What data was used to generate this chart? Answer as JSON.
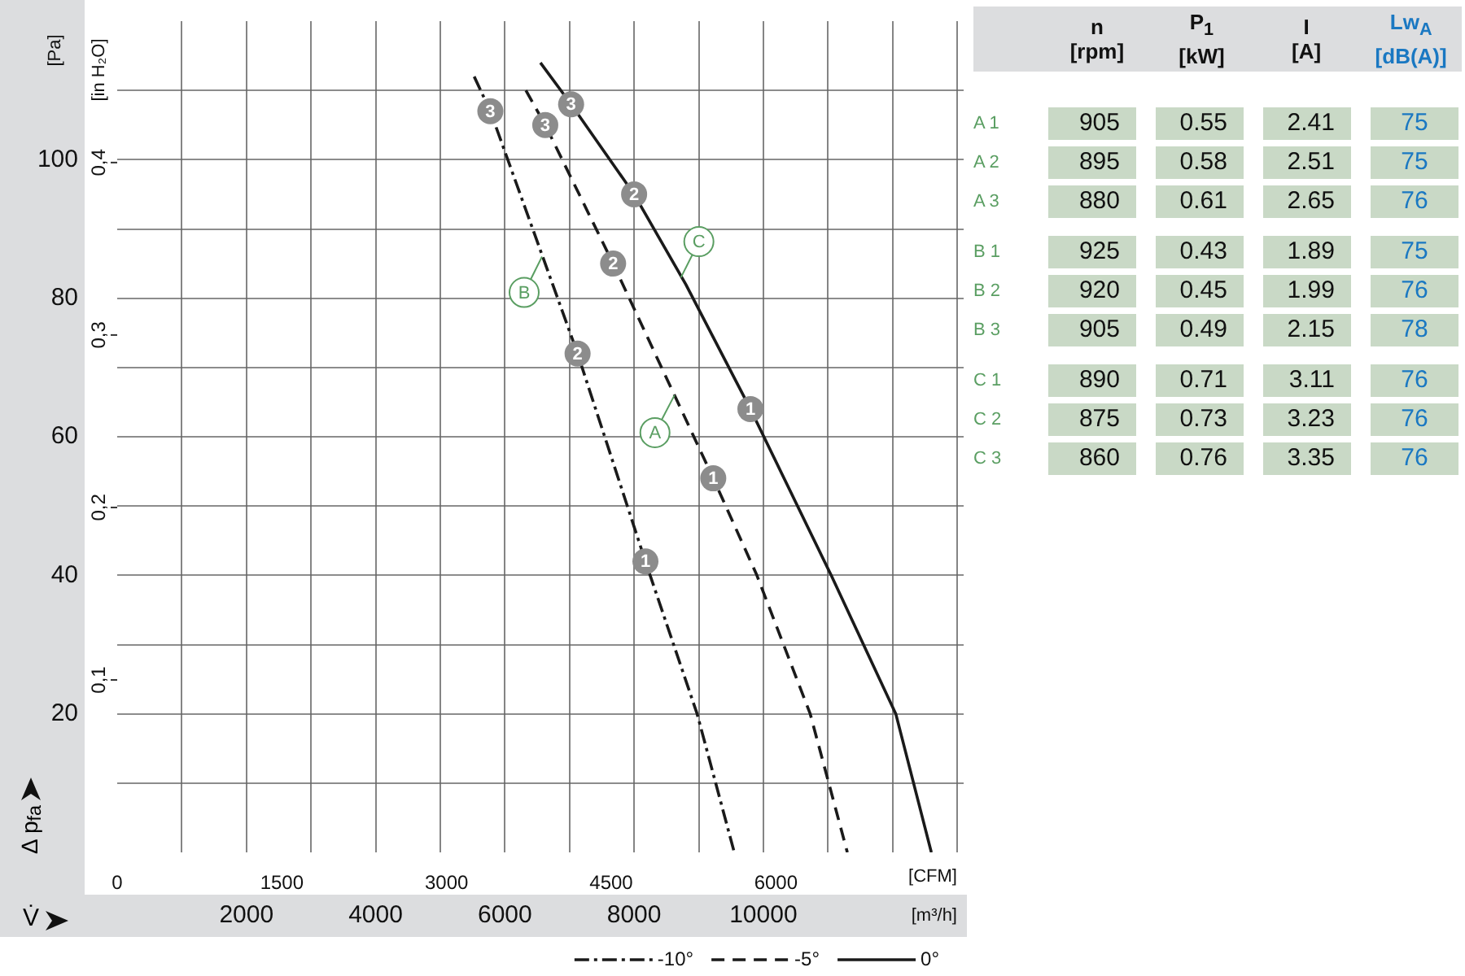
{
  "chart_data": [
    {
      "type": "line",
      "ylabel": "[Pa]",
      "y2label": "[in H₂O]",
      "xlabel": "[m³/h]",
      "x2label": "[CFM]",
      "xlim": [
        0,
        13100
      ],
      "xticks": [
        {
          "value": 1000,
          "label": null
        },
        2000,
        {
          "value": 3000,
          "label": null
        },
        4000,
        {
          "value": 5000,
          "label": null
        },
        6000,
        {
          "value": 7000,
          "label": null
        },
        8000,
        {
          "value": 9000,
          "label": null
        },
        10000,
        {
          "value": 11000,
          "label": null
        },
        {
          "value": 12000,
          "label": null
        },
        {
          "value": 13000,
          "label": null
        }
      ],
      "x2lim": [
        0,
        7710
      ],
      "x2ticks": [
        0,
        1500,
        3000,
        4500,
        6000
      ],
      "ylim": [
        0,
        120
      ],
      "yticks": [
        {
          "value": 10,
          "label": null
        },
        20,
        {
          "value": 30,
          "label": null
        },
        40,
        {
          "value": 50,
          "label": null
        },
        60,
        {
          "value": 70,
          "label": null
        },
        80,
        {
          "value": 90,
          "label": null
        },
        100,
        {
          "value": 110,
          "label": null
        }
      ],
      "y2lim": [
        0,
        0.482
      ],
      "y2ticks": [
        {
          "value": 0.1,
          "label": "0,1"
        },
        {
          "value": 0.2,
          "label": "0,2"
        },
        {
          "value": 0.3,
          "label": "0,3"
        },
        {
          "value": 0.4,
          "label": "0,4"
        }
      ],
      "grid": true,
      "legend": "bottom right",
      "series": [
        {
          "name": "-10°",
          "color": "#1a1a1a",
          "line_style": "dashdot",
          "x": [
            5525,
            5775,
            7125,
            8175,
            8975,
            9550
          ],
          "values": [
            112,
            107,
            72,
            42,
            20,
            0
          ]
        },
        {
          "name": "-5°",
          "color": "#1a1a1a",
          "line_style": "dashed",
          "x": [
            6325,
            6625,
            7675,
            9225,
            9900,
            10725,
            11300
          ],
          "values": [
            110,
            105,
            85,
            54,
            40,
            20,
            0
          ]
        },
        {
          "name": "0°",
          "color": "#1a1a1a",
          "line_style": "solid",
          "x": [
            6550,
            7025,
            8000,
            8800,
            9800,
            11050,
            12050,
            12600
          ],
          "values": [
            114,
            108,
            95,
            82,
            64,
            40,
            20,
            0
          ]
        }
      ],
      "annotations": [
        {
          "text": "3",
          "x": 5775,
          "y": 107
        },
        {
          "text": "3",
          "x": 6625,
          "y": 105
        },
        {
          "text": "3",
          "x": 7025,
          "y": 108
        },
        {
          "text": "2",
          "x": 7125,
          "y": 72
        },
        {
          "text": "2",
          "x": 7675,
          "y": 85
        },
        {
          "text": "2",
          "x": 8000,
          "y": 95
        },
        {
          "text": "1",
          "x": 8175,
          "y": 42
        },
        {
          "text": "1",
          "x": 9225,
          "y": 54
        },
        {
          "text": "1",
          "x": 9800,
          "y": 64
        },
        {
          "text": "A",
          "x": 8625,
          "y": 66
        },
        {
          "text": "B",
          "x": 6575,
          "y": 86
        },
        {
          "text": "C",
          "x": 8725,
          "y": 83
        },
        "Δ p$_{fa}$",
        "V̇"
      ]
    },
    {
      "type": "heatmap",
      "data_labels": true,
      "categories": [
        "n [rpm]",
        "P$_{1}$ [kW]",
        "I [A]",
        "Lw$_{A}$ [dB(A)]"
      ],
      "y_categories": [
        "A 1",
        "A 2",
        "A 3",
        "B 1",
        "B 2",
        "B 3",
        "C 1",
        "C 2",
        "C 3"
      ],
      "cells": [
        [
          905,
          0.55,
          2.41,
          75
        ],
        [
          895,
          0.58,
          2.51,
          75
        ],
        [
          880,
          0.61,
          2.65,
          76
        ],
        [
          925,
          0.43,
          1.89,
          75
        ],
        [
          920,
          0.45,
          1.99,
          76
        ],
        [
          905,
          0.49,
          2.15,
          78
        ],
        [
          890,
          0.71,
          3.11,
          76
        ],
        [
          875,
          0.73,
          3.23,
          76
        ],
        [
          860,
          0.76,
          3.35,
          76
        ]
      ]
    }
  ]
}
